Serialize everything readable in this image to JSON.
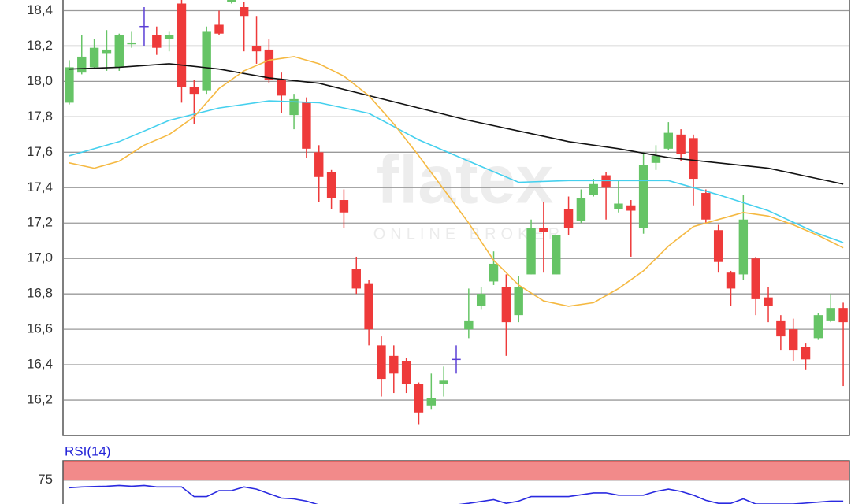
{
  "chart_data": [
    {
      "type": "candlestick",
      "watermark": "flatex",
      "watermark_subtitle": "ONLINE BROKER",
      "open": [
        17.88,
        18.05,
        18.08,
        18.16,
        18.08,
        18.21,
        18.31,
        18.26,
        18.24,
        18.44,
        17.97,
        17.95,
        18.32,
        18.45,
        18.42,
        18.2,
        18.18,
        18.01,
        17.81,
        17.88,
        17.6,
        17.49,
        17.33,
        16.94,
        16.86,
        16.51,
        16.45,
        16.42,
        16.29,
        16.17,
        16.29,
        16.43,
        16.6,
        16.73,
        16.87,
        16.84,
        16.68,
        16.91,
        17.17,
        16.91,
        17.28,
        17.21,
        17.36,
        17.47,
        17.28,
        17.3,
        17.17,
        17.54,
        17.62,
        17.7,
        17.68,
        17.37,
        17.16,
        16.92,
        16.91,
        17.0,
        16.78,
        16.65,
        16.6,
        16.5,
        16.55,
        16.65,
        16.72
      ],
      "high": [
        18.12,
        18.26,
        18.24,
        18.29,
        18.27,
        18.28,
        18.42,
        18.31,
        18.28,
        18.46,
        18.01,
        18.31,
        18.4,
        18.5,
        18.45,
        18.37,
        18.24,
        18.05,
        17.93,
        17.91,
        17.64,
        17.5,
        17.39,
        17.01,
        16.88,
        16.56,
        16.51,
        16.44,
        16.3,
        16.35,
        16.39,
        16.51,
        16.83,
        16.84,
        17.04,
        16.91,
        16.9,
        17.22,
        17.32,
        17.13,
        17.35,
        17.39,
        17.45,
        17.49,
        17.44,
        17.33,
        17.6,
        17.64,
        17.77,
        17.73,
        17.7,
        17.39,
        17.19,
        16.93,
        17.36,
        17.01,
        16.84,
        16.68,
        16.66,
        16.52,
        16.69,
        16.8,
        16.75
      ],
      "low": [
        17.87,
        18.04,
        18.07,
        18.06,
        18.06,
        18.19,
        18.2,
        18.15,
        18.17,
        17.88,
        17.76,
        17.93,
        18.26,
        18.44,
        18.17,
        18.1,
        17.99,
        17.82,
        17.73,
        17.57,
        17.32,
        17.28,
        17.17,
        16.8,
        16.51,
        16.22,
        16.24,
        16.24,
        16.06,
        16.15,
        16.22,
        16.35,
        16.55,
        16.71,
        16.85,
        16.45,
        16.64,
        16.91,
        16.92,
        16.91,
        17.13,
        17.2,
        17.35,
        17.22,
        17.26,
        17.01,
        17.14,
        17.5,
        17.61,
        17.55,
        17.3,
        17.2,
        16.92,
        16.73,
        16.88,
        16.68,
        16.64,
        16.48,
        16.42,
        16.37,
        16.54,
        16.64,
        16.28
      ],
      "close": [
        18.08,
        18.14,
        18.19,
        18.18,
        18.26,
        18.22,
        18.31,
        18.19,
        18.26,
        17.97,
        17.93,
        18.28,
        18.27,
        18.47,
        18.37,
        18.17,
        18.01,
        17.92,
        17.9,
        17.62,
        17.46,
        17.34,
        17.26,
        16.83,
        16.6,
        16.32,
        16.35,
        16.29,
        16.13,
        16.21,
        16.31,
        16.43,
        16.65,
        16.8,
        16.97,
        16.64,
        16.84,
        17.17,
        17.15,
        17.13,
        17.17,
        17.34,
        17.42,
        17.4,
        17.31,
        17.27,
        17.53,
        17.58,
        17.71,
        17.59,
        17.45,
        17.22,
        16.98,
        16.83,
        17.22,
        16.77,
        16.73,
        16.56,
        16.48,
        16.43,
        16.68,
        16.72,
        16.64
      ],
      "up_color": "#66c466",
      "down_color": "#ee3a3a",
      "doji_color": "#5b3fd6",
      "series": [
        {
          "color": "#111111",
          "x": [
            0,
            4,
            8,
            12,
            16,
            20,
            24,
            28,
            32,
            36,
            40,
            44,
            48,
            52,
            56,
            60,
            62
          ],
          "values": [
            18.07,
            18.08,
            18.1,
            18.07,
            18.02,
            17.99,
            17.92,
            17.85,
            17.78,
            17.72,
            17.66,
            17.62,
            17.57,
            17.54,
            17.51,
            17.45,
            17.42
          ]
        },
        {
          "color": "#45d0ee",
          "x": [
            0,
            4,
            8,
            12,
            16,
            20,
            24,
            28,
            32,
            36,
            40,
            44,
            48,
            52,
            56,
            60,
            62
          ],
          "values": [
            17.58,
            17.66,
            17.78,
            17.85,
            17.89,
            17.88,
            17.82,
            17.67,
            17.55,
            17.43,
            17.44,
            17.44,
            17.44,
            17.36,
            17.27,
            17.14,
            17.09
          ]
        },
        {
          "color": "#f5b942",
          "x": [
            0,
            2,
            4,
            6,
            8,
            10,
            12,
            14,
            16,
            18,
            20,
            22,
            24,
            26,
            28,
            30,
            32,
            34,
            36,
            38,
            40,
            42,
            44,
            46,
            48,
            50,
            52,
            54,
            56,
            58,
            60,
            62
          ],
          "values": [
            17.54,
            17.51,
            17.55,
            17.64,
            17.7,
            17.8,
            17.96,
            18.06,
            18.12,
            18.14,
            18.1,
            18.03,
            17.92,
            17.76,
            17.58,
            17.39,
            17.2,
            16.99,
            16.85,
            16.76,
            16.73,
            16.75,
            16.83,
            16.93,
            17.07,
            17.18,
            17.22,
            17.26,
            17.24,
            17.19,
            17.13,
            17.06
          ]
        }
      ],
      "ylim": [
        16.0,
        18.46
      ],
      "yticks": [
        {
          "value": 16.2,
          "label": "16,2"
        },
        {
          "value": 16.4,
          "label": "16,4"
        },
        {
          "value": 16.6,
          "label": "16,6"
        },
        {
          "value": 16.8,
          "label": "16,8"
        },
        {
          "value": 17.0,
          "label": "17,0"
        },
        {
          "value": 17.2,
          "label": "17,2"
        },
        {
          "value": 17.4,
          "label": "17,4"
        },
        {
          "value": 17.6,
          "label": "17,6"
        },
        {
          "value": 17.8,
          "label": "17,8"
        },
        {
          "value": 18.0,
          "label": "18,0"
        },
        {
          "value": 18.2,
          "label": "18,2"
        },
        {
          "value": 18.4,
          "label": "18,4"
        }
      ],
      "grid": true
    },
    {
      "type": "line",
      "title": "RSI(14)",
      "series": [
        {
          "color": "#2a2ae0",
          "x": [
            0,
            1,
            3,
            4,
            5,
            6,
            7,
            9,
            10,
            11,
            12,
            13,
            14,
            15,
            16,
            17,
            18,
            19,
            20,
            31,
            32,
            34,
            35,
            36,
            37,
            40,
            42,
            43,
            44,
            46,
            47,
            48,
            49,
            50,
            51,
            52,
            53,
            54,
            55,
            58,
            61,
            62
          ],
          "values": [
            65,
            66,
            67,
            68,
            67,
            68,
            66,
            66,
            53,
            53,
            61,
            61,
            66,
            63,
            57,
            51,
            50,
            47,
            42,
            42,
            44,
            49,
            44,
            47,
            53,
            53,
            58,
            58,
            55,
            55,
            60,
            63,
            60,
            55,
            48,
            44,
            44,
            50,
            43,
            43,
            47,
            47
          ]
        }
      ],
      "band": [
        75,
        100
      ],
      "band_color": "#f28a8a",
      "ylim": [
        40,
        100
      ],
      "yticks": [
        75
      ],
      "grid": true
    }
  ]
}
